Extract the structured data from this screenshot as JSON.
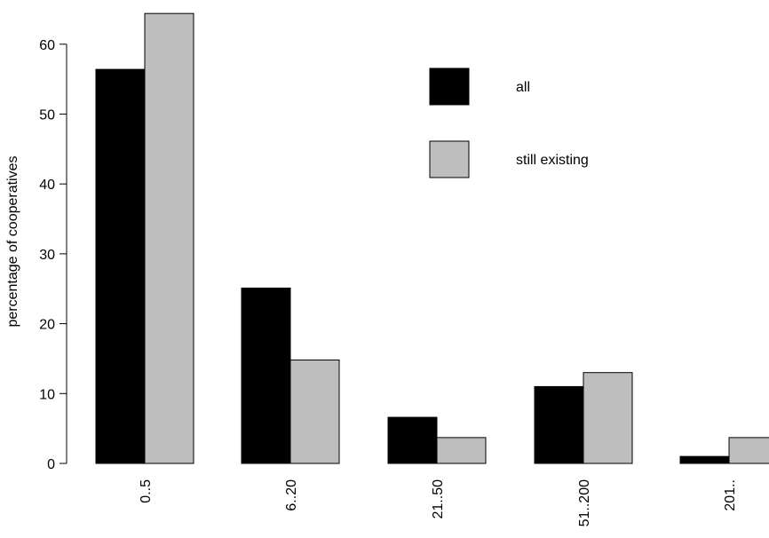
{
  "chart_data": {
    "type": "bar",
    "categories": [
      "0..5",
      "6..20",
      "21..50",
      "51..200",
      "201.."
    ],
    "series": [
      {
        "name": "all",
        "values": [
          56.4,
          25.1,
          6.6,
          11.0,
          1.0
        ],
        "color": "#000000"
      },
      {
        "name": "still existing",
        "values": [
          64.4,
          14.8,
          3.7,
          13.0,
          3.7
        ],
        "color": "#bebebe"
      }
    ],
    "ylabel": "percentage of cooperatives",
    "xlabel": "",
    "ylim": [
      0,
      65
    ],
    "yticks": [
      0,
      10,
      20,
      30,
      40,
      50,
      60
    ],
    "legend_position": "top-right",
    "grid": false
  }
}
